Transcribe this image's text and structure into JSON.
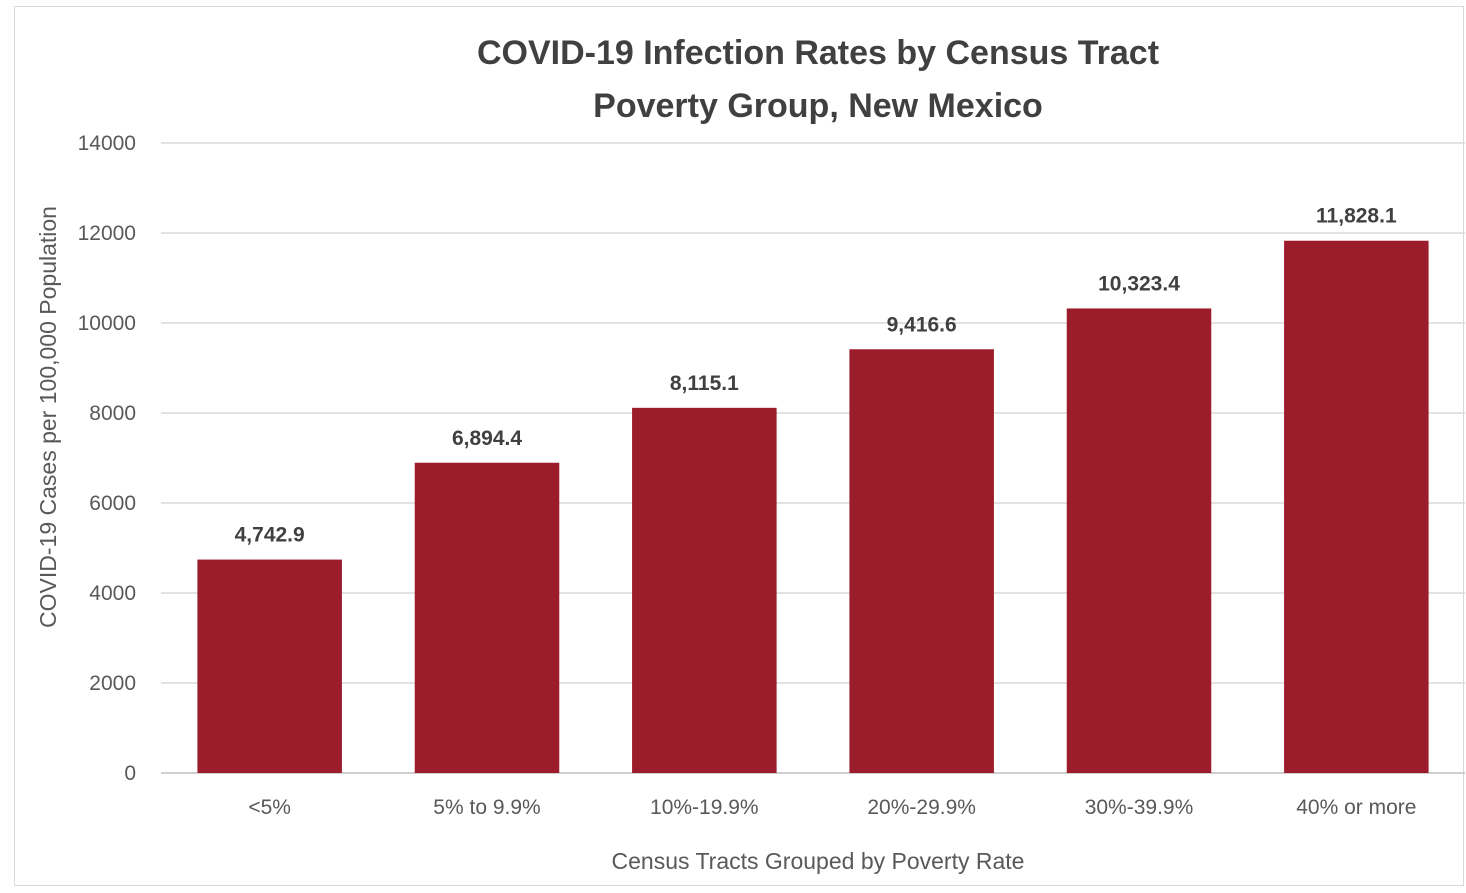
{
  "chart_data": {
    "type": "bar",
    "title": [
      "COVID-19 Infection Rates by Census Tract",
      "Poverty Group, New Mexico"
    ],
    "xlabel": "Census Tracts Grouped by Poverty Rate",
    "ylabel": "COVID-19 Cases per 100,000 Population",
    "categories": [
      "<5%",
      "5% to 9.9%",
      "10%-19.9%",
      "20%-29.9%",
      "30%-39.9%",
      "40% or more"
    ],
    "values": [
      4742.9,
      6894.4,
      8115.1,
      9416.6,
      10323.4,
      11828.1
    ],
    "data_labels": [
      "4,742.9",
      "6,894.4",
      "8,115.1",
      "9,416.6",
      "10,323.4",
      "11,828.1"
    ],
    "ylim": [
      0,
      14000
    ],
    "yticks": [
      0,
      2000,
      4000,
      6000,
      8000,
      10000,
      12000,
      14000
    ],
    "ytick_labels": [
      "0",
      "2000",
      "4000",
      "6000",
      "8000",
      "10000",
      "12000",
      "14000"
    ],
    "grid": true,
    "legend": "none",
    "bar_color": "#9b1c2a"
  }
}
